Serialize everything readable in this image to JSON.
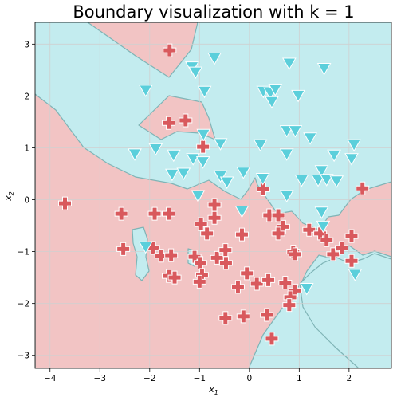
{
  "chart_data": {
    "type": "scatter",
    "title": "Boundary visualization with k = 1",
    "xlabel": "x1",
    "ylabel": "x2",
    "xlabel_main": "x",
    "xlabel_sub": "1",
    "ylabel_main": "x",
    "ylabel_sub": "2",
    "xlim": [
      -4.3,
      2.85
    ],
    "ylim": [
      -3.25,
      3.42
    ],
    "xticks": [
      -4,
      -3,
      -2,
      -1,
      0,
      1,
      2
    ],
    "yticks": [
      -3,
      -2,
      -1,
      0,
      1,
      2,
      3
    ],
    "xtick_labels": [
      "−4",
      "−3",
      "−2",
      "−1",
      "0",
      "1",
      "2"
    ],
    "ytick_labels": [
      "−3",
      "−2",
      "−1",
      "0",
      "1",
      "2",
      "3"
    ],
    "grid": true,
    "legend": "none",
    "colors": {
      "class0_region": "#f2c4c4",
      "class1_region": "#c3ecef",
      "class0_marker": "#d9595d",
      "class1_marker": "#5bcfdb",
      "boundary": "#7fb4b6",
      "grid": "#d0d0d0"
    },
    "series": [
      {
        "marker": "plus",
        "points": [
          [
            -1.6,
            2.88
          ],
          [
            -1.62,
            1.48
          ],
          [
            -1.28,
            1.53
          ],
          [
            -0.93,
            1.02
          ],
          [
            -3.7,
            -0.07
          ],
          [
            -2.57,
            -0.27
          ],
          [
            -1.9,
            -0.27
          ],
          [
            -1.62,
            -0.27
          ],
          [
            -0.7,
            -0.1
          ],
          [
            -0.7,
            -0.35
          ],
          [
            -0.97,
            -0.47
          ],
          [
            -0.85,
            -0.65
          ],
          [
            0.28,
            0.2
          ],
          [
            0.4,
            -0.3
          ],
          [
            0.58,
            -0.3
          ],
          [
            0.68,
            -0.52
          ],
          [
            0.58,
            -0.65
          ],
          [
            1.2,
            -0.58
          ],
          [
            1.42,
            -0.65
          ],
          [
            1.55,
            -0.78
          ],
          [
            1.68,
            -1.05
          ],
          [
            1.85,
            -0.93
          ],
          [
            2.05,
            -0.7
          ],
          [
            2.05,
            -1.18
          ],
          [
            2.27,
            0.22
          ],
          [
            -2.53,
            -0.95
          ],
          [
            -1.93,
            -0.93
          ],
          [
            -1.77,
            -1.08
          ],
          [
            -1.57,
            -1.07
          ],
          [
            -1.1,
            -1.1
          ],
          [
            -0.98,
            -1.22
          ],
          [
            -0.65,
            -1.12
          ],
          [
            -0.48,
            -0.97
          ],
          [
            -0.47,
            -1.22
          ],
          [
            -0.15,
            -0.67
          ],
          [
            -1.62,
            -1.47
          ],
          [
            -1.5,
            -1.5
          ],
          [
            -0.95,
            -1.45
          ],
          [
            -1.0,
            -1.58
          ],
          [
            -0.23,
            -1.68
          ],
          [
            -0.05,
            -1.42
          ],
          [
            0.15,
            -1.62
          ],
          [
            0.38,
            -1.55
          ],
          [
            0.72,
            -1.6
          ],
          [
            0.92,
            -1.75
          ],
          [
            0.82,
            -1.88
          ],
          [
            0.8,
            -2.03
          ],
          [
            0.88,
            -1.0
          ],
          [
            0.92,
            -1.05
          ],
          [
            -0.48,
            -2.28
          ],
          [
            -0.12,
            -2.25
          ],
          [
            0.35,
            -2.22
          ],
          [
            0.45,
            -2.68
          ]
        ]
      },
      {
        "marker": "triangle",
        "points": [
          [
            -1.15,
            2.55
          ],
          [
            -1.08,
            2.45
          ],
          [
            -0.7,
            2.72
          ],
          [
            0.8,
            2.62
          ],
          [
            1.5,
            2.52
          ],
          [
            -2.08,
            2.1
          ],
          [
            -0.9,
            2.08
          ],
          [
            0.28,
            2.08
          ],
          [
            0.42,
            2.05
          ],
          [
            0.52,
            2.12
          ],
          [
            0.45,
            1.88
          ],
          [
            0.98,
            2.0
          ],
          [
            -0.92,
            1.25
          ],
          [
            -0.58,
            1.07
          ],
          [
            0.75,
            1.32
          ],
          [
            0.92,
            1.32
          ],
          [
            1.22,
            1.18
          ],
          [
            -2.3,
            0.87
          ],
          [
            -1.88,
            0.97
          ],
          [
            -1.52,
            0.85
          ],
          [
            -1.13,
            0.78
          ],
          [
            -0.93,
            0.72
          ],
          [
            0.22,
            1.05
          ],
          [
            0.75,
            0.87
          ],
          [
            1.7,
            0.85
          ],
          [
            2.1,
            1.05
          ],
          [
            2.05,
            0.78
          ],
          [
            -1.55,
            0.48
          ],
          [
            -1.32,
            0.5
          ],
          [
            -0.58,
            0.45
          ],
          [
            -0.45,
            0.33
          ],
          [
            -0.12,
            0.52
          ],
          [
            0.27,
            0.4
          ],
          [
            1.05,
            0.37
          ],
          [
            1.38,
            0.37
          ],
          [
            1.45,
            0.55
          ],
          [
            1.55,
            0.38
          ],
          [
            1.75,
            0.35
          ],
          [
            -1.03,
            0.07
          ],
          [
            0.75,
            0.07
          ],
          [
            -0.15,
            -0.23
          ],
          [
            1.45,
            -0.25
          ],
          [
            1.48,
            -0.52
          ],
          [
            -2.08,
            -0.92
          ],
          [
            1.15,
            -1.72
          ],
          [
            2.12,
            -1.45
          ]
        ]
      }
    ]
  }
}
